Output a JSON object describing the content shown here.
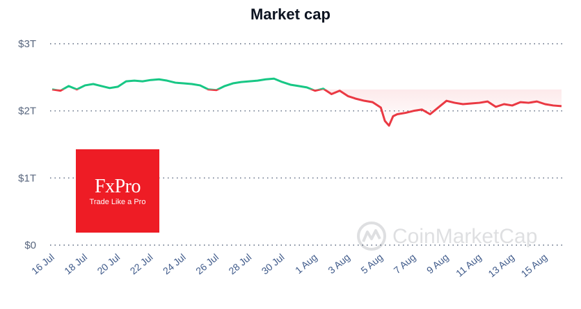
{
  "chart_data": {
    "type": "area",
    "title": "Market cap",
    "xlabel": "",
    "ylabel": "",
    "ylim": [
      0,
      3000000000000
    ],
    "yticks": [
      {
        "value": 0,
        "label": "$0"
      },
      {
        "value": 1000000000000,
        "label": "$1T"
      },
      {
        "value": 2000000000000,
        "label": "$2T"
      },
      {
        "value": 3000000000000,
        "label": "$3T"
      }
    ],
    "xlim": [
      "2024-07-16",
      "2024-08-16"
    ],
    "xticks": [
      "16 Jul",
      "18 Jul",
      "20 Jul",
      "22 Jul",
      "24 Jul",
      "26 Jul",
      "28 Jul",
      "30 Jul",
      "1 Aug",
      "3 Aug",
      "5 Aug",
      "7 Aug",
      "9 Aug",
      "11 Aug",
      "13 Aug",
      "15 Aug"
    ],
    "xtick_dates": [
      "2024-07-16",
      "2024-07-18",
      "2024-07-20",
      "2024-07-22",
      "2024-07-24",
      "2024-07-26",
      "2024-07-28",
      "2024-07-30",
      "2024-08-01",
      "2024-08-03",
      "2024-08-05",
      "2024-08-07",
      "2024-08-09",
      "2024-08-11",
      "2024-08-13",
      "2024-08-15"
    ],
    "grid": true,
    "color_above_baseline": "#16c784",
    "color_below_baseline": "#ea3943",
    "series": [
      {
        "points": [
          [
            "2024-07-16",
            2.32
          ],
          [
            "2024-07-16T12",
            2.3
          ],
          [
            "2024-07-17",
            2.37
          ],
          [
            "2024-07-17T12",
            2.32
          ],
          [
            "2024-07-18",
            2.38
          ],
          [
            "2024-07-18T12",
            2.4
          ],
          [
            "2024-07-19",
            2.37
          ],
          [
            "2024-07-19T12",
            2.34
          ],
          [
            "2024-07-20",
            2.36
          ],
          [
            "2024-07-20T12",
            2.44
          ],
          [
            "2024-07-21",
            2.45
          ],
          [
            "2024-07-21T12",
            2.44
          ],
          [
            "2024-07-22",
            2.46
          ],
          [
            "2024-07-22T12",
            2.47
          ],
          [
            "2024-07-23",
            2.45
          ],
          [
            "2024-07-23T12",
            2.42
          ],
          [
            "2024-07-24",
            2.41
          ],
          [
            "2024-07-24T12",
            2.4
          ],
          [
            "2024-07-25",
            2.38
          ],
          [
            "2024-07-25T12",
            2.32
          ],
          [
            "2024-07-26",
            2.31
          ],
          [
            "2024-07-26T12",
            2.37
          ],
          [
            "2024-07-27",
            2.41
          ],
          [
            "2024-07-27T12",
            2.43
          ],
          [
            "2024-07-28",
            2.44
          ],
          [
            "2024-07-28T12",
            2.45
          ],
          [
            "2024-07-29",
            2.47
          ],
          [
            "2024-07-29T12",
            2.48
          ],
          [
            "2024-07-30",
            2.43
          ],
          [
            "2024-07-30T12",
            2.39
          ],
          [
            "2024-07-31",
            2.37
          ],
          [
            "2024-07-31T12",
            2.35
          ],
          [
            "2024-08-01",
            2.3
          ],
          [
            "2024-08-01T12",
            2.33
          ],
          [
            "2024-08-02",
            2.25
          ],
          [
            "2024-08-02T12",
            2.3
          ],
          [
            "2024-08-03",
            2.22
          ],
          [
            "2024-08-03T12",
            2.18
          ],
          [
            "2024-08-04",
            2.15
          ],
          [
            "2024-08-04T12",
            2.13
          ],
          [
            "2024-08-05",
            2.05
          ],
          [
            "2024-08-05T06",
            1.85
          ],
          [
            "2024-08-05T12",
            1.78
          ],
          [
            "2024-08-05T18",
            1.92
          ],
          [
            "2024-08-06",
            1.95
          ],
          [
            "2024-08-06T12",
            1.97
          ],
          [
            "2024-08-07",
            2.0
          ],
          [
            "2024-08-07T12",
            2.02
          ],
          [
            "2024-08-08",
            1.95
          ],
          [
            "2024-08-08T12",
            2.05
          ],
          [
            "2024-08-09",
            2.15
          ],
          [
            "2024-08-09T12",
            2.12
          ],
          [
            "2024-08-10",
            2.1
          ],
          [
            "2024-08-10T12",
            2.11
          ],
          [
            "2024-08-11",
            2.12
          ],
          [
            "2024-08-11T12",
            2.14
          ],
          [
            "2024-08-12",
            2.06
          ],
          [
            "2024-08-12T12",
            2.1
          ],
          [
            "2024-08-13",
            2.08
          ],
          [
            "2024-08-13T12",
            2.13
          ],
          [
            "2024-08-14",
            2.12
          ],
          [
            "2024-08-14T12",
            2.14
          ],
          [
            "2024-08-15",
            2.1
          ],
          [
            "2024-08-15T12",
            2.08
          ],
          [
            "2024-08-16",
            2.07
          ]
        ],
        "unit": "trillion USD"
      }
    ]
  },
  "ad": {
    "brand": "FxPro",
    "tagline": "Trade Like a Pro",
    "color": "#ee1c25"
  },
  "watermark": {
    "text": "CoinMarketCap"
  }
}
